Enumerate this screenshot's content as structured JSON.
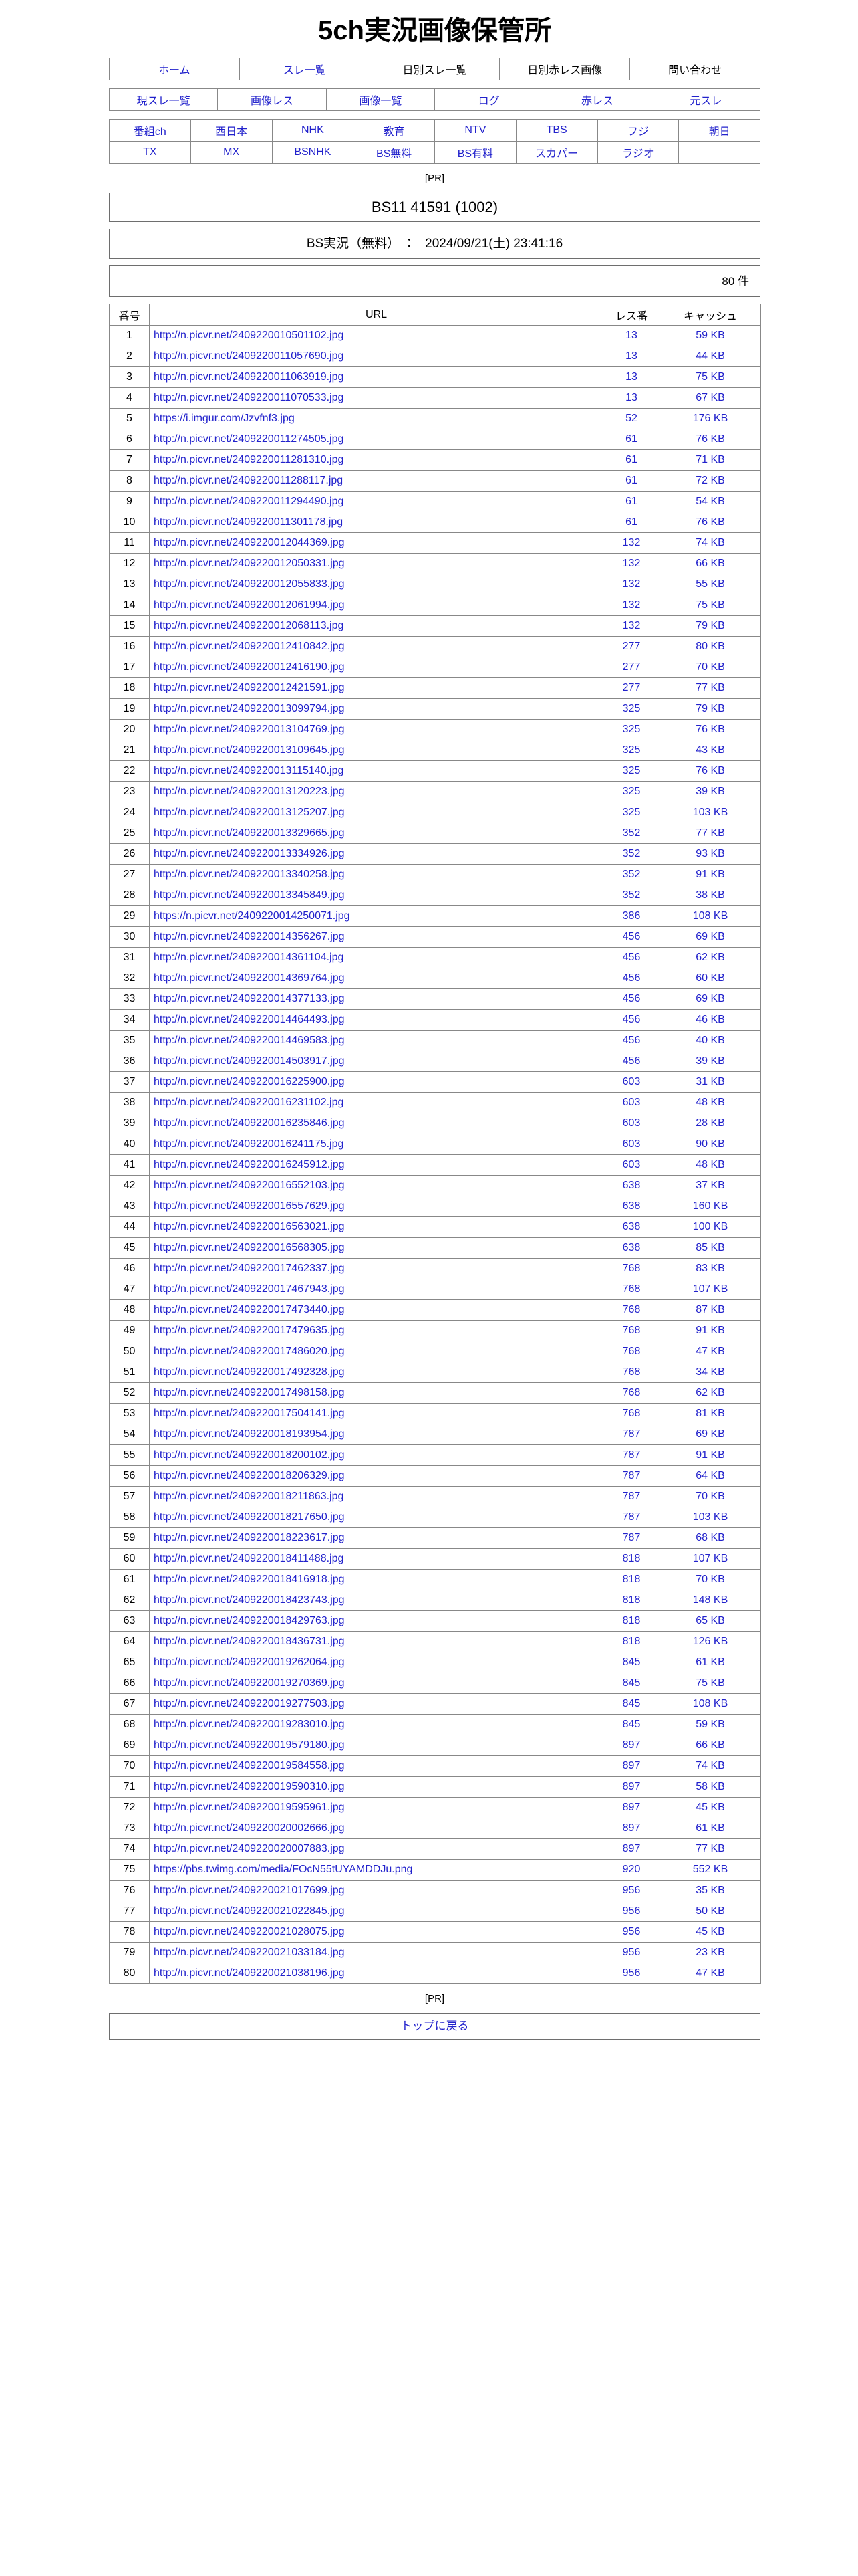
{
  "colors": {
    "link": "#2222cc",
    "text": "#000000",
    "border": "#888888"
  },
  "page": {
    "title": "5ch実況画像保管所",
    "pr_label": "[PR]"
  },
  "nav_primary": {
    "items": [
      {
        "label": "ホーム",
        "is_link": true
      },
      {
        "label": "スレ一覧",
        "is_link": true
      },
      {
        "label": "日別スレ一覧",
        "is_link": false
      },
      {
        "label": "日別赤レス画像",
        "is_link": false
      },
      {
        "label": "問い合わせ",
        "is_link": false
      }
    ]
  },
  "nav_secondary": {
    "items": [
      {
        "label": "現スレ一覧",
        "is_link": true
      },
      {
        "label": "画像レス",
        "is_link": true
      },
      {
        "label": "画像一覧",
        "is_link": true
      },
      {
        "label": "ログ",
        "is_link": true
      },
      {
        "label": "赤レス",
        "is_link": true
      },
      {
        "label": "元スレ",
        "is_link": true
      }
    ]
  },
  "nav_channels": {
    "rows": [
      [
        "番組ch",
        "西日本",
        "NHK",
        "教育",
        "NTV",
        "TBS",
        "フジ",
        "朝日"
      ],
      [
        "TX",
        "MX",
        "BSNHK",
        "BS無料",
        "BS有料",
        "スカパー",
        "ラジオ",
        ""
      ]
    ]
  },
  "thread": {
    "title": "BS11 41591 (1002)",
    "board_datetime": "BS実況（無料）　：　2024/09/21(土) 23:41:16",
    "count": "80 件"
  },
  "table": {
    "headers": [
      "番号",
      "URL",
      "レス番",
      "キャッシュ"
    ],
    "rows": [
      {
        "no": "1",
        "url": "http://n.picvr.net/2409220010501102.jpg",
        "res": "13",
        "cache": "59 KB"
      },
      {
        "no": "2",
        "url": "http://n.picvr.net/2409220011057690.jpg",
        "res": "13",
        "cache": "44 KB"
      },
      {
        "no": "3",
        "url": "http://n.picvr.net/2409220011063919.jpg",
        "res": "13",
        "cache": "75 KB"
      },
      {
        "no": "4",
        "url": "http://n.picvr.net/2409220011070533.jpg",
        "res": "13",
        "cache": "67 KB"
      },
      {
        "no": "5",
        "url": "https://i.imgur.com/Jzvfnf3.jpg",
        "res": "52",
        "cache": "176 KB"
      },
      {
        "no": "6",
        "url": "http://n.picvr.net/2409220011274505.jpg",
        "res": "61",
        "cache": "76 KB"
      },
      {
        "no": "7",
        "url": "http://n.picvr.net/2409220011281310.jpg",
        "res": "61",
        "cache": "71 KB"
      },
      {
        "no": "8",
        "url": "http://n.picvr.net/2409220011288117.jpg",
        "res": "61",
        "cache": "72 KB"
      },
      {
        "no": "9",
        "url": "http://n.picvr.net/2409220011294490.jpg",
        "res": "61",
        "cache": "54 KB"
      },
      {
        "no": "10",
        "url": "http://n.picvr.net/2409220011301178.jpg",
        "res": "61",
        "cache": "76 KB"
      },
      {
        "no": "11",
        "url": "http://n.picvr.net/2409220012044369.jpg",
        "res": "132",
        "cache": "74 KB"
      },
      {
        "no": "12",
        "url": "http://n.picvr.net/2409220012050331.jpg",
        "res": "132",
        "cache": "66 KB"
      },
      {
        "no": "13",
        "url": "http://n.picvr.net/2409220012055833.jpg",
        "res": "132",
        "cache": "55 KB"
      },
      {
        "no": "14",
        "url": "http://n.picvr.net/2409220012061994.jpg",
        "res": "132",
        "cache": "75 KB"
      },
      {
        "no": "15",
        "url": "http://n.picvr.net/2409220012068113.jpg",
        "res": "132",
        "cache": "79 KB"
      },
      {
        "no": "16",
        "url": "http://n.picvr.net/2409220012410842.jpg",
        "res": "277",
        "cache": "80 KB"
      },
      {
        "no": "17",
        "url": "http://n.picvr.net/2409220012416190.jpg",
        "res": "277",
        "cache": "70 KB"
      },
      {
        "no": "18",
        "url": "http://n.picvr.net/2409220012421591.jpg",
        "res": "277",
        "cache": "77 KB"
      },
      {
        "no": "19",
        "url": "http://n.picvr.net/2409220013099794.jpg",
        "res": "325",
        "cache": "79 KB"
      },
      {
        "no": "20",
        "url": "http://n.picvr.net/2409220013104769.jpg",
        "res": "325",
        "cache": "76 KB"
      },
      {
        "no": "21",
        "url": "http://n.picvr.net/2409220013109645.jpg",
        "res": "325",
        "cache": "43 KB"
      },
      {
        "no": "22",
        "url": "http://n.picvr.net/2409220013115140.jpg",
        "res": "325",
        "cache": "76 KB"
      },
      {
        "no": "23",
        "url": "http://n.picvr.net/2409220013120223.jpg",
        "res": "325",
        "cache": "39 KB"
      },
      {
        "no": "24",
        "url": "http://n.picvr.net/2409220013125207.jpg",
        "res": "325",
        "cache": "103 KB"
      },
      {
        "no": "25",
        "url": "http://n.picvr.net/2409220013329665.jpg",
        "res": "352",
        "cache": "77 KB"
      },
      {
        "no": "26",
        "url": "http://n.picvr.net/2409220013334926.jpg",
        "res": "352",
        "cache": "93 KB"
      },
      {
        "no": "27",
        "url": "http://n.picvr.net/2409220013340258.jpg",
        "res": "352",
        "cache": "91 KB"
      },
      {
        "no": "28",
        "url": "http://n.picvr.net/2409220013345849.jpg",
        "res": "352",
        "cache": "38 KB"
      },
      {
        "no": "29",
        "url": "https://n.picvr.net/2409220014250071.jpg",
        "res": "386",
        "cache": "108 KB"
      },
      {
        "no": "30",
        "url": "http://n.picvr.net/2409220014356267.jpg",
        "res": "456",
        "cache": "69 KB"
      },
      {
        "no": "31",
        "url": "http://n.picvr.net/2409220014361104.jpg",
        "res": "456",
        "cache": "62 KB"
      },
      {
        "no": "32",
        "url": "http://n.picvr.net/2409220014369764.jpg",
        "res": "456",
        "cache": "60 KB"
      },
      {
        "no": "33",
        "url": "http://n.picvr.net/2409220014377133.jpg",
        "res": "456",
        "cache": "69 KB"
      },
      {
        "no": "34",
        "url": "http://n.picvr.net/2409220014464493.jpg",
        "res": "456",
        "cache": "46 KB"
      },
      {
        "no": "35",
        "url": "http://n.picvr.net/2409220014469583.jpg",
        "res": "456",
        "cache": "40 KB"
      },
      {
        "no": "36",
        "url": "http://n.picvr.net/2409220014503917.jpg",
        "res": "456",
        "cache": "39 KB"
      },
      {
        "no": "37",
        "url": "http://n.picvr.net/2409220016225900.jpg",
        "res": "603",
        "cache": "31 KB"
      },
      {
        "no": "38",
        "url": "http://n.picvr.net/2409220016231102.jpg",
        "res": "603",
        "cache": "48 KB"
      },
      {
        "no": "39",
        "url": "http://n.picvr.net/2409220016235846.jpg",
        "res": "603",
        "cache": "28 KB"
      },
      {
        "no": "40",
        "url": "http://n.picvr.net/2409220016241175.jpg",
        "res": "603",
        "cache": "90 KB"
      },
      {
        "no": "41",
        "url": "http://n.picvr.net/2409220016245912.jpg",
        "res": "603",
        "cache": "48 KB"
      },
      {
        "no": "42",
        "url": "http://n.picvr.net/2409220016552103.jpg",
        "res": "638",
        "cache": "37 KB"
      },
      {
        "no": "43",
        "url": "http://n.picvr.net/2409220016557629.jpg",
        "res": "638",
        "cache": "160 KB"
      },
      {
        "no": "44",
        "url": "http://n.picvr.net/2409220016563021.jpg",
        "res": "638",
        "cache": "100 KB"
      },
      {
        "no": "45",
        "url": "http://n.picvr.net/2409220016568305.jpg",
        "res": "638",
        "cache": "85 KB"
      },
      {
        "no": "46",
        "url": "http://n.picvr.net/2409220017462337.jpg",
        "res": "768",
        "cache": "83 KB"
      },
      {
        "no": "47",
        "url": "http://n.picvr.net/2409220017467943.jpg",
        "res": "768",
        "cache": "107 KB"
      },
      {
        "no": "48",
        "url": "http://n.picvr.net/2409220017473440.jpg",
        "res": "768",
        "cache": "87 KB"
      },
      {
        "no": "49",
        "url": "http://n.picvr.net/2409220017479635.jpg",
        "res": "768",
        "cache": "91 KB"
      },
      {
        "no": "50",
        "url": "http://n.picvr.net/2409220017486020.jpg",
        "res": "768",
        "cache": "47 KB"
      },
      {
        "no": "51",
        "url": "http://n.picvr.net/2409220017492328.jpg",
        "res": "768",
        "cache": "34 KB"
      },
      {
        "no": "52",
        "url": "http://n.picvr.net/2409220017498158.jpg",
        "res": "768",
        "cache": "62 KB"
      },
      {
        "no": "53",
        "url": "http://n.picvr.net/2409220017504141.jpg",
        "res": "768",
        "cache": "81 KB"
      },
      {
        "no": "54",
        "url": "http://n.picvr.net/2409220018193954.jpg",
        "res": "787",
        "cache": "69 KB"
      },
      {
        "no": "55",
        "url": "http://n.picvr.net/2409220018200102.jpg",
        "res": "787",
        "cache": "91 KB"
      },
      {
        "no": "56",
        "url": "http://n.picvr.net/2409220018206329.jpg",
        "res": "787",
        "cache": "64 KB"
      },
      {
        "no": "57",
        "url": "http://n.picvr.net/2409220018211863.jpg",
        "res": "787",
        "cache": "70 KB"
      },
      {
        "no": "58",
        "url": "http://n.picvr.net/2409220018217650.jpg",
        "res": "787",
        "cache": "103 KB"
      },
      {
        "no": "59",
        "url": "http://n.picvr.net/2409220018223617.jpg",
        "res": "787",
        "cache": "68 KB"
      },
      {
        "no": "60",
        "url": "http://n.picvr.net/2409220018411488.jpg",
        "res": "818",
        "cache": "107 KB"
      },
      {
        "no": "61",
        "url": "http://n.picvr.net/2409220018416918.jpg",
        "res": "818",
        "cache": "70 KB"
      },
      {
        "no": "62",
        "url": "http://n.picvr.net/2409220018423743.jpg",
        "res": "818",
        "cache": "148 KB"
      },
      {
        "no": "63",
        "url": "http://n.picvr.net/2409220018429763.jpg",
        "res": "818",
        "cache": "65 KB"
      },
      {
        "no": "64",
        "url": "http://n.picvr.net/2409220018436731.jpg",
        "res": "818",
        "cache": "126 KB"
      },
      {
        "no": "65",
        "url": "http://n.picvr.net/2409220019262064.jpg",
        "res": "845",
        "cache": "61 KB"
      },
      {
        "no": "66",
        "url": "http://n.picvr.net/2409220019270369.jpg",
        "res": "845",
        "cache": "75 KB"
      },
      {
        "no": "67",
        "url": "http://n.picvr.net/2409220019277503.jpg",
        "res": "845",
        "cache": "108 KB"
      },
      {
        "no": "68",
        "url": "http://n.picvr.net/2409220019283010.jpg",
        "res": "845",
        "cache": "59 KB"
      },
      {
        "no": "69",
        "url": "http://n.picvr.net/2409220019579180.jpg",
        "res": "897",
        "cache": "66 KB"
      },
      {
        "no": "70",
        "url": "http://n.picvr.net/2409220019584558.jpg",
        "res": "897",
        "cache": "74 KB"
      },
      {
        "no": "71",
        "url": "http://n.picvr.net/2409220019590310.jpg",
        "res": "897",
        "cache": "58 KB"
      },
      {
        "no": "72",
        "url": "http://n.picvr.net/2409220019595961.jpg",
        "res": "897",
        "cache": "45 KB"
      },
      {
        "no": "73",
        "url": "http://n.picvr.net/2409220020002666.jpg",
        "res": "897",
        "cache": "61 KB"
      },
      {
        "no": "74",
        "url": "http://n.picvr.net/2409220020007883.jpg",
        "res": "897",
        "cache": "77 KB"
      },
      {
        "no": "75",
        "url": "https://pbs.twimg.com/media/FOcN55tUYAMDDJu.png",
        "res": "920",
        "cache": "552 KB"
      },
      {
        "no": "76",
        "url": "http://n.picvr.net/2409220021017699.jpg",
        "res": "956",
        "cache": "35 KB"
      },
      {
        "no": "77",
        "url": "http://n.picvr.net/2409220021022845.jpg",
        "res": "956",
        "cache": "50 KB"
      },
      {
        "no": "78",
        "url": "http://n.picvr.net/2409220021028075.jpg",
        "res": "956",
        "cache": "45 KB"
      },
      {
        "no": "79",
        "url": "http://n.picvr.net/2409220021033184.jpg",
        "res": "956",
        "cache": "23 KB"
      },
      {
        "no": "80",
        "url": "http://n.picvr.net/2409220021038196.jpg",
        "res": "956",
        "cache": "47 KB"
      }
    ]
  },
  "footer": {
    "pr_label": "[PR]",
    "back_to_top": "トップに戻る"
  }
}
